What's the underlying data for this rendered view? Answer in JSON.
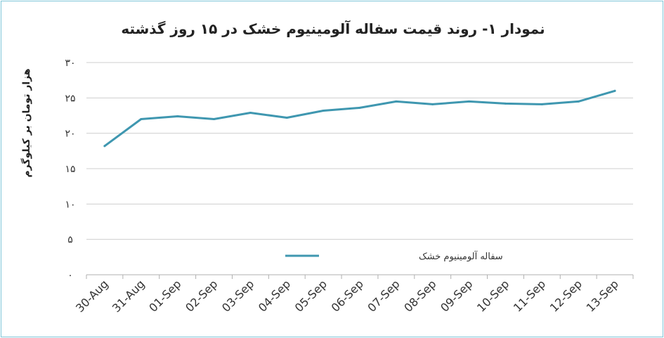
{
  "chart_data": {
    "type": "line",
    "title": "نمودار ۱- روند قیمت سفاله آلومینیوم خشک در ۱۵ روز گذشته",
    "ylabel": "هزار تومان بر کیلوگرم",
    "xlabel": "",
    "ylim": [
      0,
      30
    ],
    "yticks": [
      0,
      5,
      10,
      15,
      20,
      25,
      30
    ],
    "ytick_labels": [
      "۰",
      "۵",
      "۱۰",
      "۱۵",
      "۲۰",
      "۲۵",
      "۳۰"
    ],
    "categories": [
      "30-Aug",
      "31-Aug",
      "01-Sep",
      "02-Sep",
      "03-Sep",
      "04-Sep",
      "05-Sep",
      "06-Sep",
      "07-Sep",
      "08-Sep",
      "09-Sep",
      "10-Sep",
      "11-Sep",
      "12-Sep",
      "13-Sep"
    ],
    "series": [
      {
        "name": "سفاله آلومینیوم خشک",
        "color": "#3f97b0",
        "values": [
          18.2,
          22,
          22.4,
          22,
          22.9,
          22.2,
          23.2,
          23.6,
          24.5,
          24.1,
          24.5,
          24.2,
          24.1,
          24.5,
          26
        ]
      }
    ],
    "grid": true,
    "legend_position": "inside-bottom-center"
  }
}
